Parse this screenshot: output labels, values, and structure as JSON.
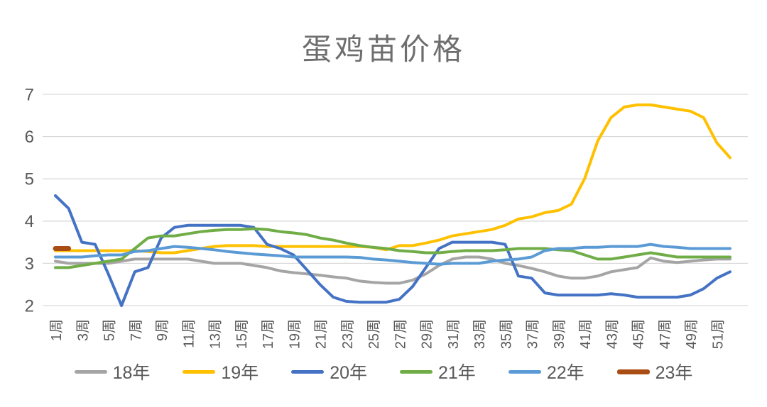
{
  "title": "蛋鸡苗价格",
  "chart_data": {
    "type": "line",
    "title": "蛋鸡苗价格",
    "xlabel": "",
    "ylabel": "",
    "ylim": [
      2,
      7
    ],
    "y_ticks": [
      "2",
      "3",
      "4",
      "5",
      "6",
      "7"
    ],
    "x_weeks": 52,
    "x_tick_labels": [
      "1周",
      "3周",
      "5周",
      "7周",
      "9周",
      "11周",
      "13周",
      "15周",
      "17周",
      "19周",
      "21周",
      "23周",
      "25周",
      "27周",
      "29周",
      "31周",
      "33周",
      "35周",
      "37周",
      "39周",
      "41周",
      "43周",
      "45周",
      "47周",
      "49周",
      "51周"
    ],
    "grid": true,
    "legend_position": "bottom",
    "axis_text_color": "#595959",
    "gridline_color": "#D9D9D9",
    "series": [
      {
        "name": "18年",
        "color": "#A5A5A5",
        "width": 4,
        "values": [
          3.05,
          3.0,
          3.0,
          3.0,
          3.0,
          3.05,
          3.1,
          3.1,
          3.1,
          3.1,
          3.1,
          3.05,
          3.0,
          3.0,
          3.0,
          2.95,
          2.9,
          2.82,
          2.78,
          2.75,
          2.72,
          2.68,
          2.65,
          2.58,
          2.55,
          2.53,
          2.53,
          2.6,
          2.75,
          2.95,
          3.1,
          3.15,
          3.15,
          3.1,
          3.0,
          2.95,
          2.88,
          2.8,
          2.7,
          2.65,
          2.65,
          2.7,
          2.8,
          2.85,
          2.9,
          3.13,
          3.05,
          3.02,
          3.05,
          3.08,
          3.1,
          3.1
        ]
      },
      {
        "name": "19年",
        "color": "#FFC000",
        "width": 4,
        "values": [
          3.3,
          3.3,
          3.3,
          3.3,
          3.3,
          3.3,
          3.3,
          3.28,
          3.25,
          3.25,
          3.3,
          3.35,
          3.4,
          3.42,
          3.42,
          3.42,
          3.4,
          3.4,
          3.4,
          3.4,
          3.4,
          3.4,
          3.4,
          3.4,
          3.38,
          3.32,
          3.42,
          3.42,
          3.48,
          3.55,
          3.65,
          3.7,
          3.75,
          3.8,
          3.9,
          4.05,
          4.1,
          4.2,
          4.25,
          4.4,
          5.0,
          5.9,
          6.45,
          6.7,
          6.75,
          6.75,
          6.7,
          6.65,
          6.6,
          6.45,
          5.85,
          5.5
        ]
      },
      {
        "name": "20年",
        "color": "#4472C4",
        "width": 4,
        "values": [
          4.6,
          4.3,
          3.5,
          3.45,
          2.75,
          2.0,
          2.8,
          2.9,
          3.6,
          3.85,
          3.9,
          3.9,
          3.9,
          3.9,
          3.9,
          3.85,
          3.45,
          3.35,
          3.2,
          2.85,
          2.5,
          2.2,
          2.1,
          2.08,
          2.08,
          2.08,
          2.15,
          2.45,
          2.9,
          3.35,
          3.5,
          3.5,
          3.5,
          3.5,
          3.45,
          2.7,
          2.65,
          2.3,
          2.25,
          2.25,
          2.25,
          2.25,
          2.28,
          2.25,
          2.2,
          2.2,
          2.2,
          2.2,
          2.25,
          2.4,
          2.65,
          2.8
        ]
      },
      {
        "name": "21年",
        "color": "#70AD47",
        "width": 4,
        "values": [
          2.9,
          2.9,
          2.95,
          3.0,
          3.05,
          3.1,
          3.35,
          3.6,
          3.65,
          3.65,
          3.7,
          3.75,
          3.78,
          3.8,
          3.8,
          3.82,
          3.8,
          3.75,
          3.72,
          3.68,
          3.6,
          3.55,
          3.48,
          3.42,
          3.38,
          3.35,
          3.3,
          3.28,
          3.25,
          3.25,
          3.28,
          3.3,
          3.3,
          3.3,
          3.32,
          3.35,
          3.35,
          3.35,
          3.32,
          3.3,
          3.2,
          3.1,
          3.1,
          3.15,
          3.2,
          3.25,
          3.2,
          3.15,
          3.15,
          3.15,
          3.15,
          3.15
        ]
      },
      {
        "name": "22年",
        "color": "#5B9BD5",
        "width": 4,
        "values": [
          3.15,
          3.15,
          3.15,
          3.18,
          3.2,
          3.2,
          3.28,
          3.3,
          3.35,
          3.4,
          3.38,
          3.35,
          3.32,
          3.28,
          3.25,
          3.22,
          3.2,
          3.18,
          3.15,
          3.15,
          3.15,
          3.15,
          3.15,
          3.14,
          3.1,
          3.08,
          3.05,
          3.02,
          3.0,
          2.98,
          3.0,
          3.0,
          3.0,
          3.05,
          3.08,
          3.1,
          3.15,
          3.3,
          3.35,
          3.35,
          3.38,
          3.38,
          3.4,
          3.4,
          3.4,
          3.45,
          3.4,
          3.38,
          3.35,
          3.35,
          3.35,
          3.35
        ]
      },
      {
        "name": "23年",
        "color": "#AA4D14",
        "width": 7,
        "values": [
          3.35,
          3.35
        ]
      }
    ]
  }
}
